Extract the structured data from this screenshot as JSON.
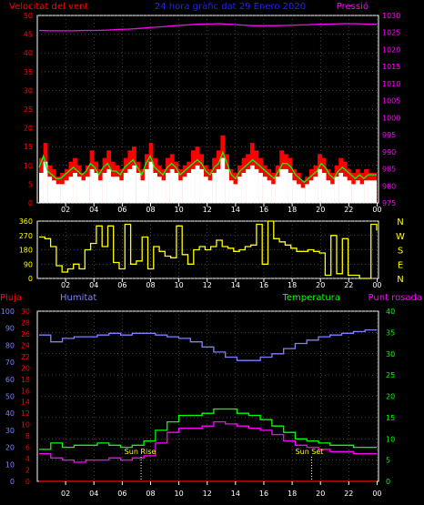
{
  "header": {
    "wind_label": "Velocitat del vent",
    "title": "24 hora gràfic dat  29 Enero 2020",
    "pressure_label": "Pressió"
  },
  "lower_labels": {
    "rain": "Pluja",
    "humidity": "Humitat",
    "temperature": "Temperatura",
    "dewpoint": "Punt rosada"
  },
  "annotations": {
    "sunrise": "Sun Rise",
    "sunset": "Sun Set",
    "sunrise_hour": 7.3,
    "sunset_hour": 19.3
  },
  "colors": {
    "wind_gust": "#ff0000",
    "wind_avg": "#00ff00",
    "wind_fill": "#ffffff",
    "pressure": "#ff00ff",
    "direction": "#ffff00",
    "rain": "#ff0000",
    "humidity": "#8080ff",
    "temperature": "#00ff00",
    "dewpoint": "#ff00ff",
    "axis": "#ffffff",
    "grid": "#808080"
  },
  "chart_data": [
    {
      "type": "line",
      "name": "wind-pressure",
      "x_ticks": [
        "02",
        "04",
        "06",
        "08",
        "10",
        "12",
        "14",
        "16",
        "18",
        "20",
        "22",
        "00"
      ],
      "y_left": {
        "label": "Velocitat del vent",
        "ylim": [
          0,
          50
        ],
        "ticks": [
          0,
          5,
          10,
          15,
          20,
          25,
          30,
          35,
          40,
          45,
          50
        ]
      },
      "y_right": {
        "label": "Pressió",
        "ylim": [
          975,
          1030
        ],
        "ticks": [
          975,
          980,
          985,
          990,
          995,
          1000,
          1005,
          1010,
          1015,
          1020,
          1025,
          1030
        ]
      },
      "series": [
        {
          "name": "gust",
          "axis": "left",
          "kind": "wind_gust",
          "values": [
            12,
            16,
            10,
            9,
            7,
            8,
            9,
            11,
            12,
            10,
            8,
            10,
            14,
            11,
            9,
            12,
            14,
            11,
            10,
            9,
            12,
            14,
            15,
            11,
            9,
            13,
            16,
            12,
            10,
            9,
            12,
            13,
            11,
            9,
            10,
            11,
            14,
            15,
            13,
            10,
            9,
            12,
            14,
            18,
            13,
            9,
            8,
            10,
            12,
            13,
            16,
            14,
            12,
            10,
            9,
            8,
            10,
            14,
            13,
            12,
            9,
            8,
            6,
            7,
            9,
            10,
            13,
            12,
            9,
            8,
            10,
            12,
            11,
            9,
            8,
            9,
            8,
            9,
            8,
            8
          ]
        },
        {
          "name": "average",
          "axis": "left",
          "kind": "wind_avg",
          "values": [
            8,
            11,
            7,
            6,
            5,
            5,
            6,
            7,
            8,
            7,
            6,
            7,
            9,
            8,
            6,
            8,
            9,
            7,
            7,
            6,
            8,
            9,
            10,
            8,
            6,
            9,
            11,
            8,
            7,
            6,
            8,
            9,
            8,
            6,
            7,
            8,
            9,
            10,
            9,
            7,
            6,
            8,
            9,
            12,
            9,
            6,
            5,
            7,
            8,
            9,
            10,
            9,
            8,
            7,
            6,
            5,
            7,
            9,
            9,
            8,
            6,
            5,
            4,
            5,
            6,
            7,
            9,
            8,
            6,
            5,
            7,
            8,
            7,
            6,
            5,
            6,
            5,
            6,
            6,
            6
          ]
        },
        {
          "name": "pressure",
          "axis": "right",
          "kind": "pressure",
          "values": [
            1025.6,
            1025.5,
            1025.5,
            1025.5,
            1025.6,
            1025.6,
            1025.7,
            1025.9,
            1026.0,
            1026.2,
            1026.5,
            1026.7,
            1027.0,
            1027.2,
            1027.4,
            1027.5,
            1027.6,
            1027.4,
            1027.2,
            1027.0,
            1027.0,
            1027.0,
            1027.1,
            1027.2,
            1027.3,
            1027.4,
            1027.5,
            1027.6,
            1027.6,
            1027.5,
            1027.4
          ]
        }
      ]
    },
    {
      "type": "line",
      "name": "wind-direction",
      "y_left": {
        "ylim": [
          0,
          360
        ],
        "ticks": [
          0,
          90,
          180,
          270,
          360
        ]
      },
      "y_right_labels": [
        "N",
        "W",
        "S",
        "E",
        "N"
      ],
      "series": [
        {
          "name": "direction",
          "axis": "left",
          "kind": "direction",
          "values": [
            260,
            250,
            200,
            80,
            40,
            60,
            90,
            60,
            180,
            220,
            330,
            200,
            330,
            100,
            60,
            340,
            90,
            110,
            260,
            60,
            200,
            170,
            140,
            130,
            330,
            150,
            90,
            180,
            200,
            180,
            200,
            240,
            200,
            190,
            170,
            180,
            200,
            210,
            340,
            90,
            360,
            250,
            230,
            210,
            190,
            170,
            170,
            180,
            170,
            160,
            20,
            270,
            30,
            250,
            20,
            20,
            0,
            0,
            340,
            300
          ]
        }
      ]
    },
    {
      "type": "line",
      "name": "humidity-temperature",
      "y_left_rain": {
        "label": "Pluja",
        "ylim": [
          0,
          30
        ],
        "ticks": [
          0,
          2,
          4,
          6,
          8,
          10,
          12,
          14,
          16,
          18,
          20,
          22,
          24,
          26,
          28,
          30
        ]
      },
      "y_left_hum": {
        "label": "Humitat",
        "ylim": [
          0,
          100
        ],
        "ticks": [
          0,
          10,
          20,
          30,
          40,
          50,
          60,
          70,
          80,
          90,
          100
        ]
      },
      "y_right": {
        "label": "Temperatura",
        "ylim": [
          0,
          40
        ],
        "ticks": [
          0,
          5,
          10,
          15,
          20,
          25,
          30,
          35,
          40
        ]
      },
      "series": [
        {
          "name": "rain",
          "axis": "rain",
          "kind": "rain",
          "values": [
            0,
            0,
            0,
            0,
            0,
            0,
            0,
            0,
            0,
            0,
            0,
            0,
            0
          ]
        },
        {
          "name": "humidity",
          "axis": "hum",
          "kind": "humidity",
          "values": [
            86,
            82,
            84,
            85,
            85,
            86,
            87,
            86,
            87,
            87,
            86,
            85,
            84,
            82,
            79,
            76,
            73,
            71,
            71,
            73,
            75,
            78,
            81,
            83,
            85,
            86,
            87,
            88,
            89,
            89
          ]
        },
        {
          "name": "temperature",
          "axis": "right",
          "kind": "temperature",
          "values": [
            7.5,
            9.0,
            8.0,
            8.5,
            8.5,
            9.0,
            8.5,
            8.0,
            8.5,
            9.5,
            12.0,
            14.0,
            15.5,
            15.5,
            16.0,
            17.0,
            17.0,
            16.0,
            15.5,
            14.5,
            13.0,
            11.5,
            10.0,
            9.5,
            9.0,
            8.5,
            8.5,
            8.0,
            8.0,
            8.0
          ]
        },
        {
          "name": "dewpoint",
          "axis": "right",
          "kind": "dewpoint",
          "values": [
            6.5,
            5.5,
            5.0,
            4.5,
            5.0,
            5.0,
            5.5,
            5.0,
            5.5,
            6.0,
            9.0,
            11.5,
            12.5,
            12.5,
            13.0,
            14.0,
            13.5,
            13.0,
            12.5,
            12.0,
            11.0,
            9.5,
            8.5,
            8.0,
            7.5,
            7.0,
            7.0,
            6.5,
            6.5,
            6.5
          ]
        }
      ]
    }
  ]
}
